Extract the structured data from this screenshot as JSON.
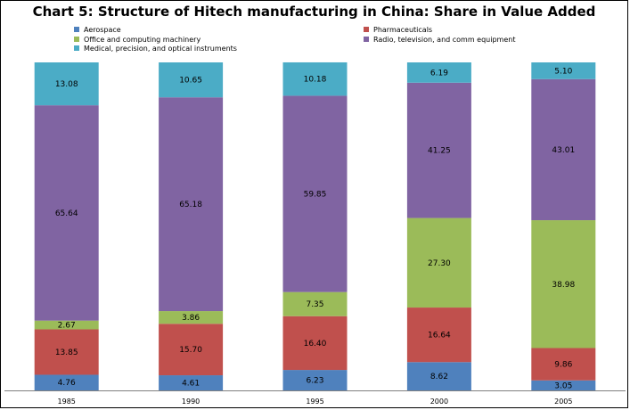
{
  "chart_data": {
    "type": "bar",
    "stacked": true,
    "title": "Chart 5: Structure of Hitech manufacturing in China: Share in Value Added",
    "xlabel": "",
    "ylabel": "",
    "ylim": [
      0,
      100
    ],
    "grid": false,
    "legend_position": "top",
    "categories": [
      "1985",
      "1990",
      "1995",
      "2000",
      "2005"
    ],
    "series": [
      {
        "name": "Aerospace",
        "color": "#4f81bd",
        "values": [
          4.76,
          4.61,
          6.23,
          8.62,
          3.05
        ],
        "labels": [
          "4.76",
          "4.61",
          "6.23",
          "8.62",
          "3.05"
        ]
      },
      {
        "name": "Pharmaceuticals",
        "color": "#c0504d",
        "values": [
          13.85,
          15.7,
          16.4,
          16.64,
          9.86
        ],
        "labels": [
          "13.85",
          "15.70",
          "16.40",
          "16.64",
          "9.86"
        ]
      },
      {
        "name": "Office and computing machinery",
        "color": "#9bbb59",
        "values": [
          2.67,
          3.86,
          7.35,
          27.3,
          38.98
        ],
        "labels": [
          "2.67",
          "3.86",
          "7.35",
          "27.30",
          "38.98"
        ]
      },
      {
        "name": "Radio, television, and comm equipment",
        "color": "#8064a2",
        "values": [
          65.64,
          65.18,
          59.85,
          41.25,
          43.01
        ],
        "labels": [
          "65.64",
          "65.18",
          "59.85",
          "41.25",
          "43.01"
        ]
      },
      {
        "name": "Medical, precision, and optical instruments",
        "color": "#4bacc6",
        "values": [
          13.08,
          10.65,
          10.18,
          6.19,
          5.1
        ],
        "labels": [
          "13.08",
          "10.65",
          "10.18",
          "6.19",
          "5.10"
        ]
      }
    ]
  }
}
